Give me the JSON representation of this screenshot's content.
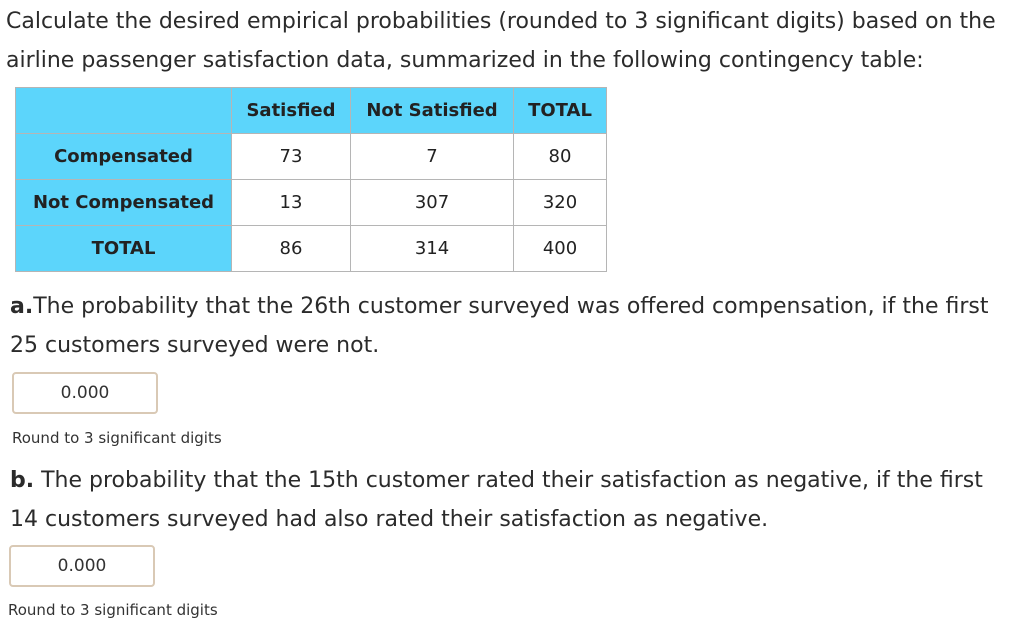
{
  "intro_text": "Calculate the desired empirical probabilities (rounded to 3 significant digits) based on the airline passenger satisfaction data, summarized in the following contingency table:",
  "table": {
    "headers": [
      "",
      "Satisfied",
      "Not Satisfied",
      "TOTAL"
    ],
    "rows": [
      {
        "label": "Compensated",
        "cells": [
          "73",
          "7",
          "80"
        ]
      },
      {
        "label": "Not Compensated",
        "cells": [
          "13",
          "307",
          "320"
        ]
      },
      {
        "label": "TOTAL",
        "cells": [
          "86",
          "314",
          "400"
        ]
      }
    ],
    "header_color": "#5cd5fb"
  },
  "questions": [
    {
      "letter": "a.",
      "text": "The probability that the 26th customer surveyed was offered compensation, if the first 25 customers surveyed were not.",
      "answer_value": "0.000",
      "hint": "Round to 3 significant digits"
    },
    {
      "letter": "b.",
      "text": " The probability that the 15th customer rated their satisfaction as negative, if the first 14 customers surveyed had also rated their satisfaction as negative.",
      "answer_value": "0.000",
      "hint": "Round to 3 significant digits"
    }
  ]
}
